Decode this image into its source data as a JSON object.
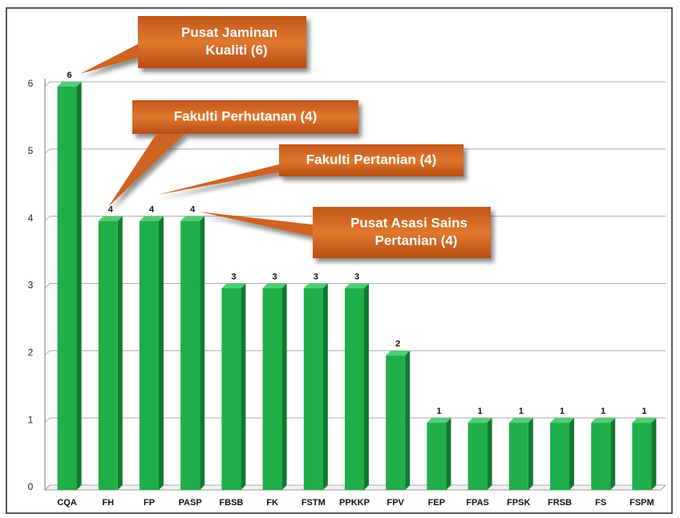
{
  "chart_data": {
    "type": "bar",
    "categories": [
      "CQA",
      "FH",
      "FP",
      "PASP",
      "FBSB",
      "FK",
      "FSTM",
      "PPKKP",
      "FPV",
      "FEP",
      "FPAS",
      "FPSK",
      "FRSB",
      "FS",
      "FSPM"
    ],
    "values": [
      6,
      4,
      4,
      4,
      3,
      3,
      3,
      3,
      2,
      1,
      1,
      1,
      1,
      1,
      1
    ],
    "color": "#1fae48",
    "ylim": [
      0,
      6
    ],
    "yticks": [
      0,
      1,
      2,
      3,
      4,
      5,
      6
    ],
    "grid": true,
    "annotations": [
      {
        "lines": [
          "Pusat Jaminan",
          "Kualiti (6)"
        ]
      },
      {
        "lines": [
          "Fakulti Perhutanan (4)"
        ]
      },
      {
        "lines": [
          "Fakulti Pertanian (4)"
        ]
      },
      {
        "lines": [
          "Pusat Asasi Sains",
          "Pertanian (4)"
        ]
      }
    ]
  }
}
